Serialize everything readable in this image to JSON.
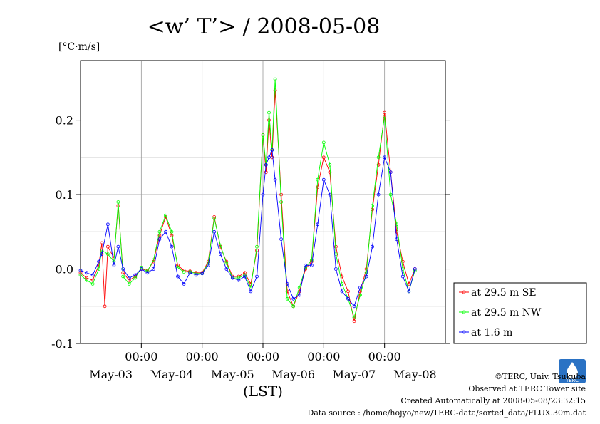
{
  "chart_data": {
    "type": "line",
    "title": "<w’ T’> / 2008-05-08",
    "unit_label": "[°C·m/s]",
    "xlabel": "(LST)",
    "ylim": [
      -0.1,
      0.28
    ],
    "yticks": [
      "0.2",
      "0.1",
      "0.0",
      "-0.1"
    ],
    "ytick_values": [
      0.2,
      0.1,
      0.0,
      -0.1
    ],
    "xticks_time": [
      "00:00",
      "00:00",
      "00:00",
      "00:00",
      "00:00"
    ],
    "xticks_time_pos": [
      2.0,
      3.0,
      4.0,
      5.0,
      6.0
    ],
    "xticks_day": [
      "May-03",
      "May-04",
      "May-05",
      "May-06",
      "May-07",
      "May-08"
    ],
    "xticks_day_pos": [
      1.5,
      2.5,
      3.5,
      4.5,
      5.5,
      6.5
    ],
    "xlim": [
      1.0,
      7.0
    ],
    "grid": true,
    "legend_position": "right",
    "series": [
      {
        "name": "at 29.5 m SE",
        "color": "#ff0000",
        "points": [
          [
            1.0,
            -0.005
          ],
          [
            1.1,
            -0.012
          ],
          [
            1.2,
            -0.015
          ],
          [
            1.3,
            0.005
          ],
          [
            1.35,
            0.035
          ],
          [
            1.4,
            -0.05
          ],
          [
            1.45,
            0.03
          ],
          [
            1.55,
            0.015
          ],
          [
            1.62,
            0.085
          ],
          [
            1.7,
            -0.005
          ],
          [
            1.8,
            -0.015
          ],
          [
            1.9,
            -0.01
          ],
          [
            2.0,
            0.0
          ],
          [
            2.1,
            -0.002
          ],
          [
            2.2,
            0.01
          ],
          [
            2.3,
            0.045
          ],
          [
            2.4,
            0.07
          ],
          [
            2.5,
            0.045
          ],
          [
            2.6,
            0.005
          ],
          [
            2.7,
            -0.002
          ],
          [
            2.8,
            -0.003
          ],
          [
            2.9,
            -0.005
          ],
          [
            3.0,
            -0.005
          ],
          [
            3.1,
            0.01
          ],
          [
            3.2,
            0.07
          ],
          [
            3.3,
            0.03
          ],
          [
            3.4,
            0.01
          ],
          [
            3.5,
            -0.01
          ],
          [
            3.6,
            -0.01
          ],
          [
            3.7,
            -0.005
          ],
          [
            3.8,
            -0.02
          ],
          [
            3.9,
            0.025
          ],
          [
            4.0,
            0.18
          ],
          [
            4.05,
            0.13
          ],
          [
            4.1,
            0.2
          ],
          [
            4.15,
            0.15
          ],
          [
            4.2,
            0.24
          ],
          [
            4.3,
            0.1
          ],
          [
            4.4,
            -0.03
          ],
          [
            4.5,
            -0.05
          ],
          [
            4.6,
            -0.03
          ],
          [
            4.7,
            0.0
          ],
          [
            4.8,
            0.01
          ],
          [
            4.9,
            0.11
          ],
          [
            5.0,
            0.15
          ],
          [
            5.1,
            0.13
          ],
          [
            5.2,
            0.03
          ],
          [
            5.3,
            -0.01
          ],
          [
            5.4,
            -0.03
          ],
          [
            5.5,
            -0.07
          ],
          [
            5.6,
            -0.03
          ],
          [
            5.7,
            0.0
          ],
          [
            5.8,
            0.08
          ],
          [
            5.9,
            0.14
          ],
          [
            6.0,
            0.21
          ],
          [
            6.1,
            0.13
          ],
          [
            6.2,
            0.05
          ],
          [
            6.3,
            0.01
          ],
          [
            6.4,
            -0.02
          ],
          [
            6.5,
            0.0
          ]
        ]
      },
      {
        "name": "at 29.5 m NW",
        "color": "#00ff00",
        "points": [
          [
            1.0,
            -0.008
          ],
          [
            1.1,
            -0.015
          ],
          [
            1.2,
            -0.02
          ],
          [
            1.3,
            0.0
          ],
          [
            1.35,
            0.025
          ],
          [
            1.45,
            0.02
          ],
          [
            1.55,
            0.01
          ],
          [
            1.62,
            0.09
          ],
          [
            1.7,
            -0.01
          ],
          [
            1.8,
            -0.02
          ],
          [
            1.9,
            -0.012
          ],
          [
            2.0,
            0.002
          ],
          [
            2.1,
            -0.003
          ],
          [
            2.2,
            0.012
          ],
          [
            2.3,
            0.05
          ],
          [
            2.4,
            0.072
          ],
          [
            2.5,
            0.05
          ],
          [
            2.6,
            0.002
          ],
          [
            2.7,
            -0.004
          ],
          [
            2.8,
            -0.004
          ],
          [
            2.9,
            -0.006
          ],
          [
            3.0,
            -0.006
          ],
          [
            3.1,
            0.008
          ],
          [
            3.2,
            0.068
          ],
          [
            3.3,
            0.032
          ],
          [
            3.4,
            0.008
          ],
          [
            3.5,
            -0.012
          ],
          [
            3.6,
            -0.012
          ],
          [
            3.7,
            -0.008
          ],
          [
            3.8,
            -0.025
          ],
          [
            3.9,
            0.03
          ],
          [
            4.0,
            0.18
          ],
          [
            4.05,
            0.14
          ],
          [
            4.1,
            0.21
          ],
          [
            4.15,
            0.16
          ],
          [
            4.2,
            0.255
          ],
          [
            4.3,
            0.09
          ],
          [
            4.4,
            -0.04
          ],
          [
            4.5,
            -0.05
          ],
          [
            4.6,
            -0.025
          ],
          [
            4.7,
            0.002
          ],
          [
            4.8,
            0.012
          ],
          [
            4.9,
            0.12
          ],
          [
            5.0,
            0.17
          ],
          [
            5.1,
            0.14
          ],
          [
            5.2,
            0.02
          ],
          [
            5.3,
            -0.02
          ],
          [
            5.4,
            -0.04
          ],
          [
            5.5,
            -0.065
          ],
          [
            5.6,
            -0.035
          ],
          [
            5.7,
            -0.005
          ],
          [
            5.8,
            0.085
          ],
          [
            5.9,
            0.15
          ],
          [
            6.0,
            0.205
          ],
          [
            6.1,
            0.1
          ],
          [
            6.2,
            0.06
          ],
          [
            6.3,
            0.0
          ],
          [
            6.4,
            -0.03
          ],
          [
            6.5,
            -0.002
          ]
        ]
      },
      {
        "name": "at 1.6 m",
        "color": "#0000ff",
        "points": [
          [
            1.0,
            -0.002
          ],
          [
            1.1,
            -0.005
          ],
          [
            1.2,
            -0.008
          ],
          [
            1.3,
            0.01
          ],
          [
            1.35,
            0.02
          ],
          [
            1.45,
            0.06
          ],
          [
            1.55,
            0.005
          ],
          [
            1.62,
            0.03
          ],
          [
            1.7,
            0.0
          ],
          [
            1.8,
            -0.012
          ],
          [
            1.9,
            -0.008
          ],
          [
            2.0,
            0.0
          ],
          [
            2.1,
            -0.005
          ],
          [
            2.2,
            0.0
          ],
          [
            2.3,
            0.04
          ],
          [
            2.4,
            0.05
          ],
          [
            2.5,
            0.03
          ],
          [
            2.6,
            -0.01
          ],
          [
            2.7,
            -0.02
          ],
          [
            2.8,
            -0.005
          ],
          [
            2.9,
            -0.008
          ],
          [
            3.0,
            -0.006
          ],
          [
            3.1,
            0.005
          ],
          [
            3.2,
            0.05
          ],
          [
            3.3,
            0.02
          ],
          [
            3.4,
            0.0
          ],
          [
            3.5,
            -0.012
          ],
          [
            3.6,
            -0.015
          ],
          [
            3.7,
            -0.01
          ],
          [
            3.8,
            -0.03
          ],
          [
            3.9,
            -0.01
          ],
          [
            4.0,
            0.1
          ],
          [
            4.05,
            0.14
          ],
          [
            4.1,
            0.15
          ],
          [
            4.15,
            0.16
          ],
          [
            4.2,
            0.12
          ],
          [
            4.3,
            0.04
          ],
          [
            4.4,
            -0.02
          ],
          [
            4.5,
            -0.04
          ],
          [
            4.6,
            -0.035
          ],
          [
            4.7,
            0.005
          ],
          [
            4.8,
            0.005
          ],
          [
            4.9,
            0.06
          ],
          [
            5.0,
            0.12
          ],
          [
            5.1,
            0.1
          ],
          [
            5.2,
            0.0
          ],
          [
            5.3,
            -0.03
          ],
          [
            5.4,
            -0.04
          ],
          [
            5.5,
            -0.05
          ],
          [
            5.6,
            -0.025
          ],
          [
            5.7,
            -0.01
          ],
          [
            5.8,
            0.03
          ],
          [
            5.9,
            0.1
          ],
          [
            6.0,
            0.15
          ],
          [
            6.1,
            0.13
          ],
          [
            6.2,
            0.04
          ],
          [
            6.3,
            -0.01
          ],
          [
            6.4,
            -0.03
          ],
          [
            6.5,
            0.0
          ]
        ]
      }
    ]
  },
  "footer": {
    "copyright": "©TERC, Univ. Tsukuba",
    "observed": "Observed at TERC Tower site",
    "created": "Created Automatically at 2008-05-08/23:32:15",
    "source": "Data source : /home/hojyo/new/TERC-data/sorted_data/FLUX.30m.dat",
    "logo_text": "TERC"
  }
}
